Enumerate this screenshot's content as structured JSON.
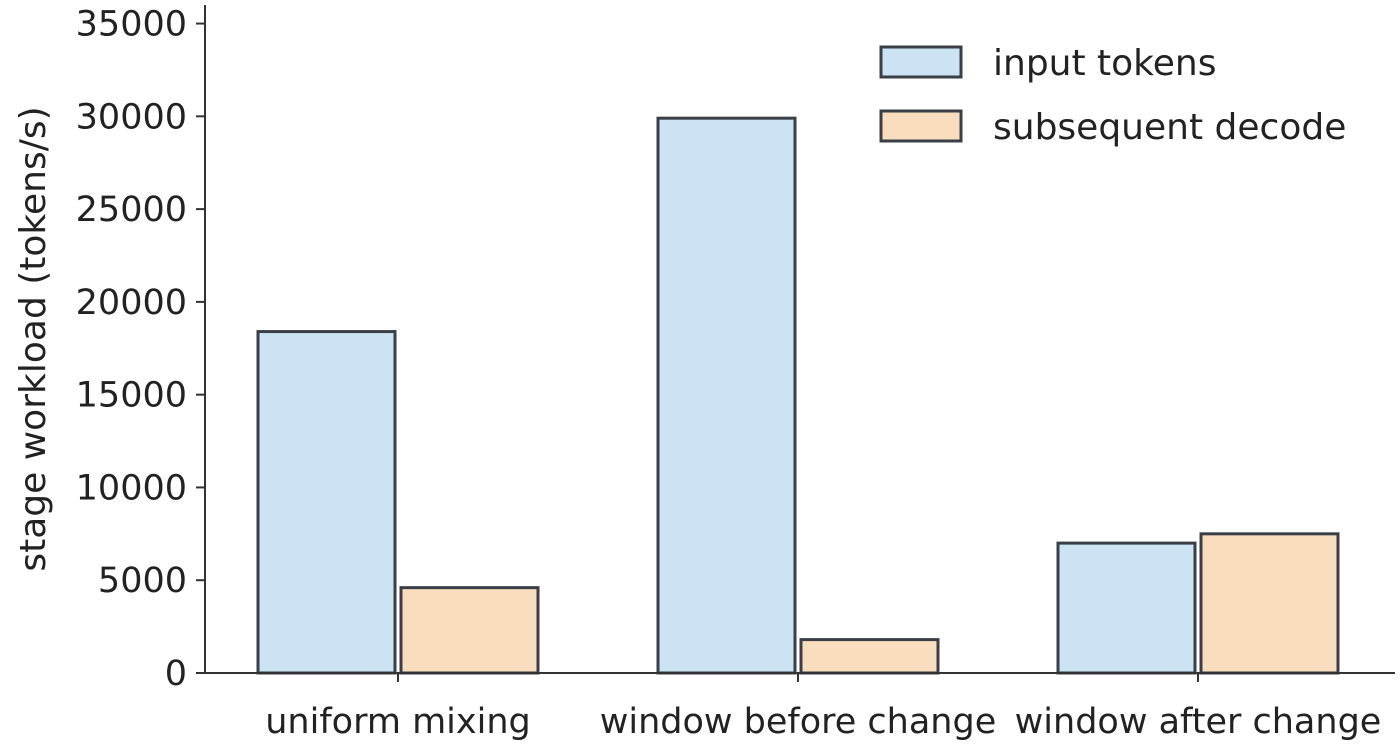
{
  "chart_data": {
    "type": "bar",
    "title": "",
    "xlabel": "",
    "ylabel": "stage workload (tokens/s)",
    "categories": [
      "uniform mixing",
      "window before change",
      "window after change"
    ],
    "series": [
      {
        "name": "input tokens",
        "values": [
          18400,
          29900,
          7000
        ],
        "color": "#cce3f3"
      },
      {
        "name": "subsequent decode",
        "values": [
          4600,
          1800,
          7500
        ],
        "color": "#f9ddbf"
      }
    ],
    "ylim": [
      0,
      36000
    ],
    "yticks": [
      0,
      5000,
      10000,
      15000,
      20000,
      25000,
      30000,
      35000
    ],
    "grid": false,
    "legend_position": "top-right",
    "colors": {
      "bar_edge": "#3a3f47",
      "axis": "#333333",
      "text": "#222222"
    }
  }
}
